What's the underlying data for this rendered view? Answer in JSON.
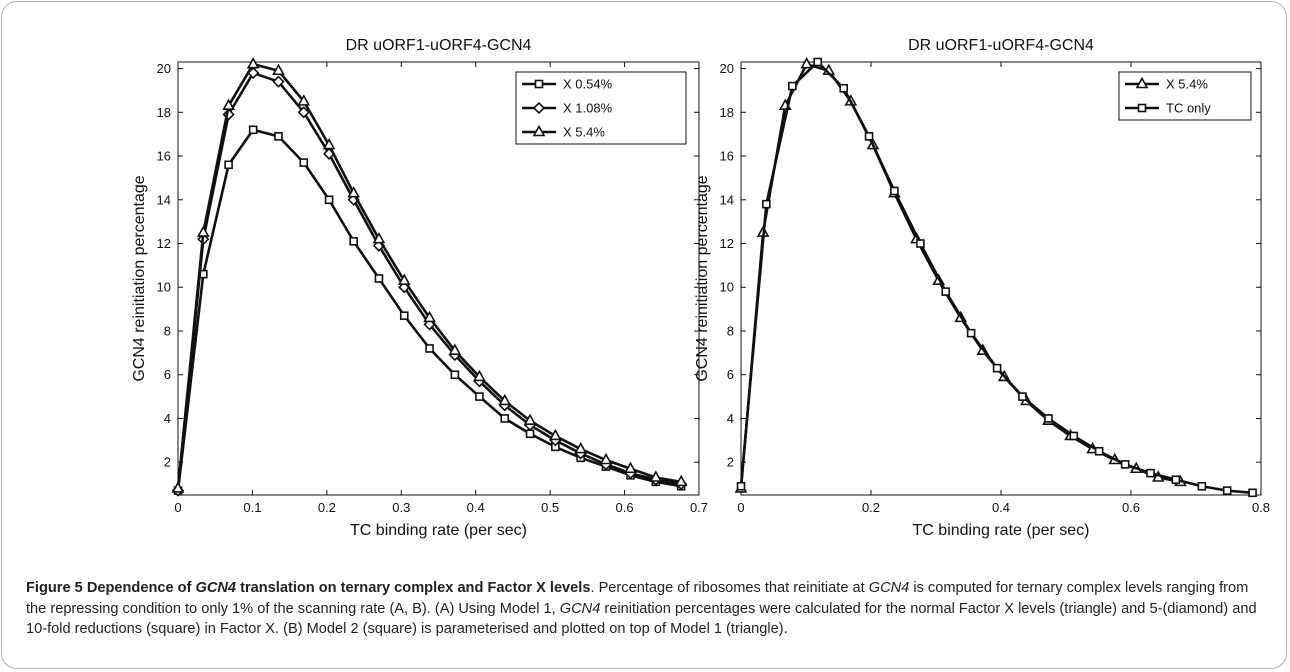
{
  "chart_data": [
    {
      "type": "line",
      "title": "DR uORF1-uORF4-GCN4",
      "xlabel": "TC binding rate (per sec)",
      "ylabel": "GCN4 reinitiation percentage",
      "xlim": [
        0,
        0.7
      ],
      "ylim": [
        0.5,
        20.3
      ],
      "xticks": [
        "0",
        "0.1",
        "0.2",
        "0.3",
        "0.4",
        "0.5",
        "0.6",
        "0.7"
      ],
      "yticks": [
        "2",
        "4",
        "6",
        "8",
        "10",
        "12",
        "14",
        "16",
        "18",
        "20"
      ],
      "legend_position": "top-right",
      "series": [
        {
          "name": "X 0.54%",
          "marker": "square",
          "x": [
            0,
            0.034,
            0.068,
            0.101,
            0.135,
            0.169,
            0.203,
            0.236,
            0.27,
            0.304,
            0.338,
            0.372,
            0.405,
            0.439,
            0.473,
            0.507,
            0.541,
            0.575,
            0.608,
            0.642,
            0.676
          ],
          "y": [
            0.7,
            10.6,
            15.6,
            17.2,
            16.9,
            15.7,
            14.0,
            12.1,
            10.4,
            8.7,
            7.2,
            6.0,
            5.0,
            4.0,
            3.3,
            2.7,
            2.2,
            1.8,
            1.4,
            1.1,
            0.9
          ]
        },
        {
          "name": "X 1.08%",
          "marker": "diamond",
          "x": [
            0,
            0.034,
            0.068,
            0.101,
            0.135,
            0.169,
            0.203,
            0.236,
            0.27,
            0.304,
            0.338,
            0.372,
            0.405,
            0.439,
            0.473,
            0.507,
            0.541,
            0.575,
            0.608,
            0.642,
            0.676
          ],
          "y": [
            0.7,
            12.2,
            17.9,
            19.8,
            19.4,
            18.0,
            16.1,
            14.0,
            11.9,
            10.0,
            8.3,
            6.9,
            5.7,
            4.6,
            3.7,
            3.0,
            2.4,
            1.9,
            1.5,
            1.2,
            1.0
          ]
        },
        {
          "name": "X 5.4%",
          "marker": "triangle",
          "x": [
            0,
            0.034,
            0.068,
            0.101,
            0.135,
            0.169,
            0.203,
            0.236,
            0.27,
            0.304,
            0.338,
            0.372,
            0.405,
            0.439,
            0.473,
            0.507,
            0.541,
            0.575,
            0.608,
            0.642,
            0.676
          ],
          "y": [
            0.8,
            12.5,
            18.3,
            20.2,
            19.9,
            18.5,
            16.5,
            14.3,
            12.2,
            10.3,
            8.6,
            7.1,
            5.9,
            4.8,
            3.9,
            3.2,
            2.6,
            2.1,
            1.7,
            1.3,
            1.1
          ]
        }
      ]
    },
    {
      "type": "line",
      "title": "DR uORF1-uORF4-GCN4",
      "xlabel": "TC binding rate (per sec)",
      "ylabel": "GCN4 reinitiation percentage",
      "xlim": [
        0,
        0.8
      ],
      "ylim": [
        0.5,
        20.3
      ],
      "xticks": [
        "0",
        "0.2",
        "0.4",
        "0.6",
        "0.8"
      ],
      "yticks": [
        "2",
        "4",
        "6",
        "8",
        "10",
        "12",
        "14",
        "16",
        "18",
        "20"
      ],
      "legend_position": "top-right",
      "series": [
        {
          "name": "X 5.4%",
          "marker": "triangle",
          "x": [
            0,
            0.034,
            0.068,
            0.101,
            0.135,
            0.169,
            0.203,
            0.236,
            0.27,
            0.304,
            0.338,
            0.372,
            0.405,
            0.439,
            0.473,
            0.507,
            0.541,
            0.575,
            0.608,
            0.642,
            0.676
          ],
          "y": [
            0.8,
            12.5,
            18.3,
            20.2,
            19.9,
            18.5,
            16.5,
            14.3,
            12.2,
            10.3,
            8.6,
            7.1,
            5.9,
            4.8,
            3.9,
            3.2,
            2.6,
            2.1,
            1.7,
            1.3,
            1.1
          ]
        },
        {
          "name": "TC only",
          "marker": "square",
          "x": [
            0,
            0.039,
            0.079,
            0.118,
            0.158,
            0.197,
            0.236,
            0.276,
            0.315,
            0.354,
            0.394,
            0.433,
            0.473,
            0.512,
            0.551,
            0.591,
            0.63,
            0.669,
            0.709,
            0.748,
            0.787
          ],
          "y": [
            0.9,
            13.8,
            19.2,
            20.3,
            19.1,
            16.9,
            14.4,
            12.0,
            9.8,
            7.9,
            6.3,
            5.0,
            4.0,
            3.2,
            2.5,
            1.9,
            1.5,
            1.2,
            0.9,
            0.7,
            0.6
          ]
        }
      ]
    }
  ],
  "caption": {
    "fig_label": "Figure 5 ",
    "title_a": "Dependence of ",
    "title_gene": "GCN4",
    "title_b": " translation on ternary complex and Factor X levels",
    "t1": ". Percentage of ribosomes that reinitiate at ",
    "gene1": "GCN4",
    "t2": " is computed for ternary complex levels ranging from the repressing condition to only 1% of the scanning rate (A, B). (A) Using Model 1, ",
    "gene2": "GCN4",
    "t3": " reinitiation percentages were calculated for the normal Factor X levels (triangle) and 5-(diamond) and 10-fold reductions (square) in Factor X. (B) Model 2 (square) is parameterised and plotted on top of Model 1 (triangle)."
  }
}
